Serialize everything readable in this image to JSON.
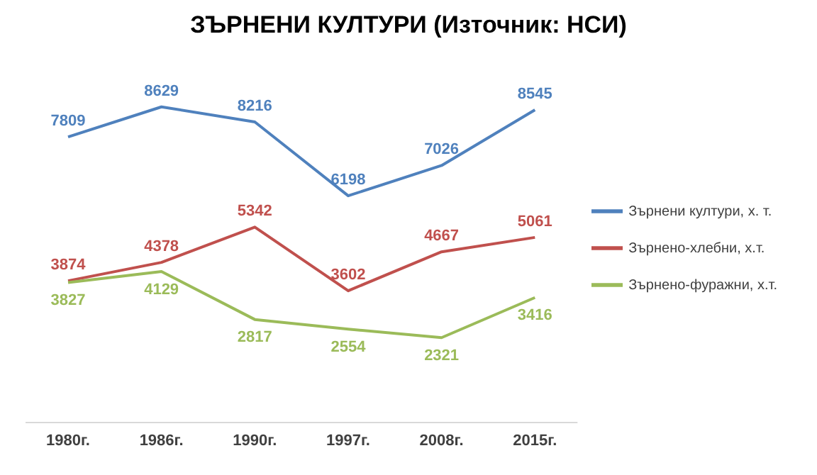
{
  "chart_data": {
    "type": "line",
    "title": "ЗЪРНЕНИ КУЛТУРИ (Източник: НСИ)",
    "categories": [
      "1980г.",
      "1986г.",
      "1990г.",
      "1997г.",
      "2008г.",
      "2015г."
    ],
    "series": [
      {
        "name": "Зърнени култури, х. т.",
        "color": "#4f81bd",
        "values": [
          7809,
          8629,
          8216,
          6198,
          7026,
          8545
        ]
      },
      {
        "name": "Зърнено-хлебни, х.т.",
        "color": "#c0504d",
        "values": [
          3874,
          4378,
          5342,
          3602,
          4667,
          5061
        ]
      },
      {
        "name": "Зърнено-фуражни, х.т.",
        "color": "#9bbb59",
        "values": [
          3827,
          4129,
          2817,
          2554,
          2321,
          3416
        ]
      }
    ],
    "data_labels": true,
    "legend": "right",
    "grid": false,
    "marker": "none",
    "line_style": "solid"
  }
}
